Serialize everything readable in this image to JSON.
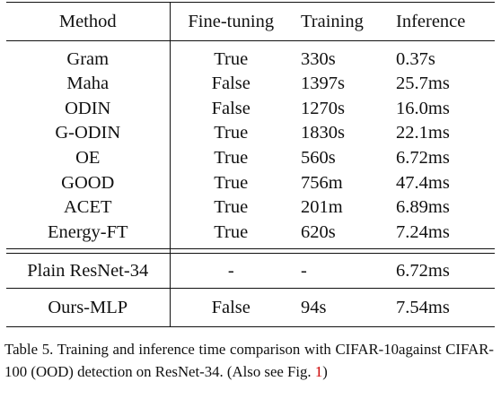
{
  "table": {
    "headers": {
      "method": "Method",
      "fine_tuning": "Fine-tuning",
      "training": "Training",
      "inference": "Inference"
    },
    "rows": [
      {
        "method": "Gram",
        "fine_tuning": "True",
        "training": "330s",
        "inference": "0.37s"
      },
      {
        "method": "Maha",
        "fine_tuning": "False",
        "training": "1397s",
        "inference": "25.7ms"
      },
      {
        "method": "ODIN",
        "fine_tuning": "False",
        "training": "1270s",
        "inference": "16.0ms"
      },
      {
        "method": "G-ODIN",
        "fine_tuning": "True",
        "training": "1830s",
        "inference": "22.1ms"
      },
      {
        "method": "OE",
        "fine_tuning": "True",
        "training": "560s",
        "inference": "6.72ms"
      },
      {
        "method": "GOOD",
        "fine_tuning": "True",
        "training": "756m",
        "inference": "47.4ms"
      },
      {
        "method": "ACET",
        "fine_tuning": "True",
        "training": "201m",
        "inference": "6.89ms"
      },
      {
        "method": "Energy-FT",
        "fine_tuning": "True",
        "training": "620s",
        "inference": "7.24ms"
      }
    ],
    "baseline": {
      "method": "Plain ResNet-34",
      "fine_tuning": "-",
      "training": "-",
      "inference": "6.72ms"
    },
    "ours": {
      "method": "Ours-MLP",
      "fine_tuning": "False",
      "training": "94s",
      "inference": "7.54ms"
    }
  },
  "caption": {
    "text": "Table 5.  Training and inference time comparison with CIFAR-10against CIFAR-100 (OOD) detection on ResNet-34.  (Also see Fig. ",
    "ref": "1",
    "tail": ")"
  }
}
